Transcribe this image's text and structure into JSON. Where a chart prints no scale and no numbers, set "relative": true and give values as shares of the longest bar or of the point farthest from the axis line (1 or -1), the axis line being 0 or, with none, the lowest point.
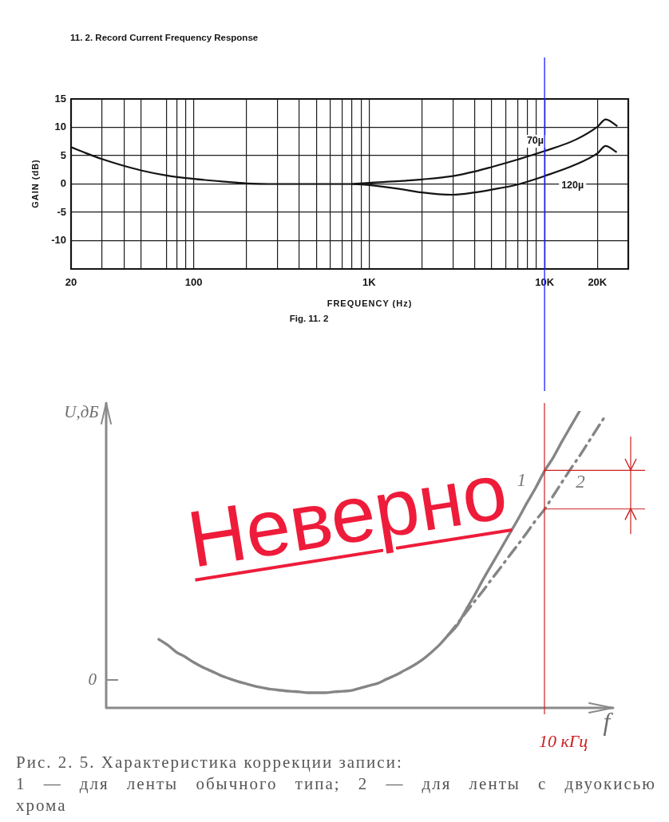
{
  "chart_data": [
    {
      "type": "line",
      "title": "11. 2. Record Current Frequency Response",
      "xlabel": "FREQUENCY (Hz)",
      "ylabel": "GAIN (dB)",
      "log": "x",
      "xlim": [
        20,
        30000
      ],
      "ylim": [
        -15,
        15
      ],
      "xticks": [
        20,
        {
          "value": 30,
          "label": null
        },
        {
          "value": 40,
          "label": null
        },
        {
          "value": 50,
          "label": null
        },
        {
          "value": 70,
          "label": null
        },
        {
          "value": 80,
          "label": null
        },
        {
          "value": 90,
          "label": null
        },
        100,
        {
          "value": 200,
          "label": null
        },
        {
          "value": 300,
          "label": null
        },
        {
          "value": 400,
          "label": null
        },
        {
          "value": 500,
          "label": null
        },
        {
          "value": 600,
          "label": null
        },
        {
          "value": 700,
          "label": null
        },
        {
          "value": 800,
          "label": null
        },
        {
          "value": 900,
          "label": null
        },
        {
          "value": 1000,
          "label": "1K"
        },
        {
          "value": 2000,
          "label": null
        },
        {
          "value": 3000,
          "label": null
        },
        {
          "value": 4000,
          "label": null
        },
        {
          "value": 5000,
          "label": null
        },
        {
          "value": 6000,
          "label": null
        },
        {
          "value": 7000,
          "label": null
        },
        {
          "value": 8000,
          "label": null
        },
        {
          "value": 9000,
          "label": null
        },
        {
          "value": 10000,
          "label": "10K"
        },
        {
          "value": 20000,
          "label": "20K"
        }
      ],
      "yticks": [
        -10,
        -5,
        0,
        5,
        10,
        15
      ],
      "grid": true,
      "series": [
        {
          "name": "70µ",
          "color": "#141414",
          "x": [
            20,
            25,
            30,
            40,
            50,
            70,
            100,
            150,
            200,
            300,
            500,
            800,
            1000,
            1500,
            2000,
            3000,
            4000,
            5000,
            7000,
            10000,
            15000,
            20000,
            22300,
            26000
          ],
          "values": [
            6.5,
            5.3,
            4.4,
            3.2,
            2.4,
            1.5,
            0.9,
            0.4,
            0.1,
            0,
            0,
            0,
            0.2,
            0.5,
            0.8,
            1.4,
            2.2,
            3.0,
            4.3,
            5.8,
            7.8,
            10.1,
            11.4,
            10.2
          ]
        },
        {
          "name": "120µ",
          "color": "#141414",
          "x": [
            800,
            1000,
            1500,
            2000,
            2500,
            3000,
            4000,
            5000,
            7000,
            10000,
            15000,
            20000,
            22300,
            25800
          ],
          "values": [
            0,
            -0.2,
            -0.9,
            -1.5,
            -1.8,
            -1.9,
            -1.5,
            -1.0,
            -0.1,
            1.4,
            3.4,
            5.4,
            6.7,
            5.6
          ]
        }
      ],
      "ref_lines": [
        {
          "axis": "x",
          "value": 10000,
          "color": "#1f1fff"
        }
      ],
      "annotations": [
        "Fig. 11. 2"
      ]
    },
    {
      "type": "line",
      "relative": true,
      "xlabel": "f",
      "ylabel": "U,дБ",
      "categories": [
        null,
        null,
        null,
        null,
        null,
        null,
        null,
        null,
        null,
        null,
        null,
        null,
        null,
        null,
        null,
        null,
        null,
        null,
        null,
        null,
        null,
        null,
        null,
        null,
        null,
        null,
        null,
        null,
        null,
        null,
        null,
        null,
        null,
        null,
        null,
        null,
        null,
        null,
        null,
        null,
        null,
        null,
        null,
        null,
        null,
        null,
        null,
        null,
        null,
        null,
        null,
        null,
        null,
        null,
        null,
        null,
        null,
        null
      ],
      "series": [
        {
          "name": "1",
          "color": "#858585",
          "values": [
            null,
            null,
            null,
            null,
            null,
            null,
            0.231,
            0.212,
            0.188,
            0.172,
            0.153,
            0.137,
            0.124,
            0.11,
            0.099,
            0.089,
            0.081,
            0.073,
            0.067,
            0.062,
            0.059,
            0.056,
            0.054,
            0.051,
            0.051,
            0.051,
            0.054,
            0.056,
            0.059,
            0.067,
            0.075,
            0.083,
            0.097,
            0.11,
            0.126,
            0.142,
            0.161,
            0.185,
            0.212,
            0.245,
            0.277,
            0.328,
            0.379,
            0.433,
            0.484,
            0.535,
            0.586,
            0.637,
            0.691,
            0.742,
            0.798,
            0.844,
            0.898,
            0.949,
            1.0,
            null,
            null,
            null
          ]
        },
        {
          "name": "2",
          "color": "#858585",
          "line_style": "dashed",
          "values": [
            null,
            null,
            null,
            null,
            null,
            null,
            null,
            null,
            null,
            null,
            null,
            null,
            null,
            null,
            null,
            null,
            null,
            null,
            null,
            null,
            null,
            null,
            null,
            null,
            null,
            null,
            null,
            null,
            null,
            null,
            null,
            null,
            null,
            null,
            null,
            null,
            null,
            null,
            null,
            0.245,
            0.282,
            0.32,
            0.358,
            0.395,
            0.435,
            0.473,
            0.513,
            0.551,
            0.591,
            0.632,
            0.669,
            0.715,
            0.761,
            0.806,
            0.849,
            0.895,
            0.941,
            0.987
          ]
        }
      ],
      "ref_lines": [
        {
          "axis": "y",
          "value": 0.8,
          "color": "#cc2020"
        },
        {
          "axis": "y",
          "value": 0.67,
          "color": "#cc2020"
        }
      ],
      "annotations": [
        "0",
        "Неверно",
        "10 кГц",
        "Рис. 2. 5. Характеристика коррекции записи:",
        "1 — для ленты обычного типа; 2 — для ленты с двуокисью хрома"
      ]
    }
  ]
}
